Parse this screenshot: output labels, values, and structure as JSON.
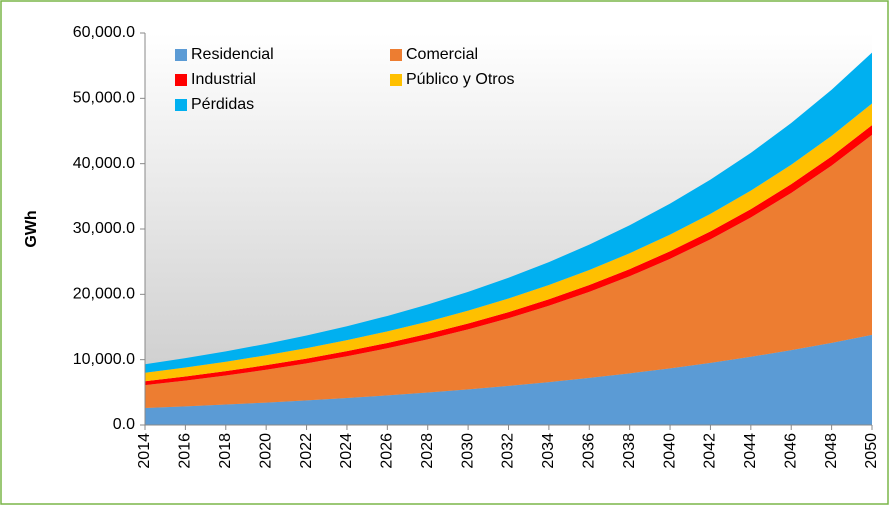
{
  "chart_data": {
    "type": "stacked-area",
    "y_label": "GWh",
    "x": [
      2014,
      2016,
      2018,
      2020,
      2022,
      2024,
      2026,
      2028,
      2030,
      2032,
      2034,
      2036,
      2038,
      2040,
      2042,
      2044,
      2046,
      2048,
      2050
    ],
    "xlim": [
      2014,
      2050
    ],
    "ylim": [
      0,
      60000
    ],
    "yticks": [
      {
        "value": 0,
        "label": "0.0"
      },
      {
        "value": 10000,
        "label": "10,000.0"
      },
      {
        "value": 20000,
        "label": "20,000.0"
      },
      {
        "value": 30000,
        "label": "30,000.0"
      },
      {
        "value": 40000,
        "label": "40,000.0"
      },
      {
        "value": 50000,
        "label": "50,000.0"
      },
      {
        "value": 60000,
        "label": "60,000.0"
      }
    ],
    "legend": "top-left",
    "series": [
      {
        "name": "Residencial",
        "color": "#5b9bd5",
        "values": [
          2600,
          2852,
          3129,
          3433,
          3767,
          4132,
          4534,
          4974,
          5457,
          5987,
          6568,
          7206,
          7906,
          8674,
          9516,
          10440,
          11454,
          12566,
          13800
        ]
      },
      {
        "name": "Comercial",
        "color": "#ed7d31",
        "values": [
          3500,
          3948,
          4454,
          5024,
          5667,
          6393,
          7211,
          8134,
          9176,
          10350,
          11675,
          13170,
          14856,
          16758,
          18903,
          21323,
          24052,
          27131,
          30600
        ]
      },
      {
        "name": "Industrial",
        "color": "#ff0000",
        "values": [
          600,
          631,
          664,
          699,
          735,
          774,
          814,
          857,
          901,
          948,
          998,
          1050,
          1105,
          1162,
          1223,
          1287,
          1354,
          1425,
          1500
        ]
      },
      {
        "name": "Público y Otros",
        "color": "#ffc000",
        "values": [
          1300,
          1369,
          1442,
          1518,
          1599,
          1684,
          1773,
          1867,
          1966,
          2071,
          2181,
          2296,
          2418,
          2547,
          2682,
          2824,
          2974,
          3132,
          3300
        ]
      },
      {
        "name": "Pérdidas",
        "color": "#00b0f0",
        "values": [
          1300,
          1436,
          1586,
          1752,
          1935,
          2138,
          2361,
          2608,
          2881,
          3182,
          3515,
          3883,
          4289,
          4738,
          5233,
          5781,
          6385,
          7053,
          7800
        ]
      }
    ]
  }
}
